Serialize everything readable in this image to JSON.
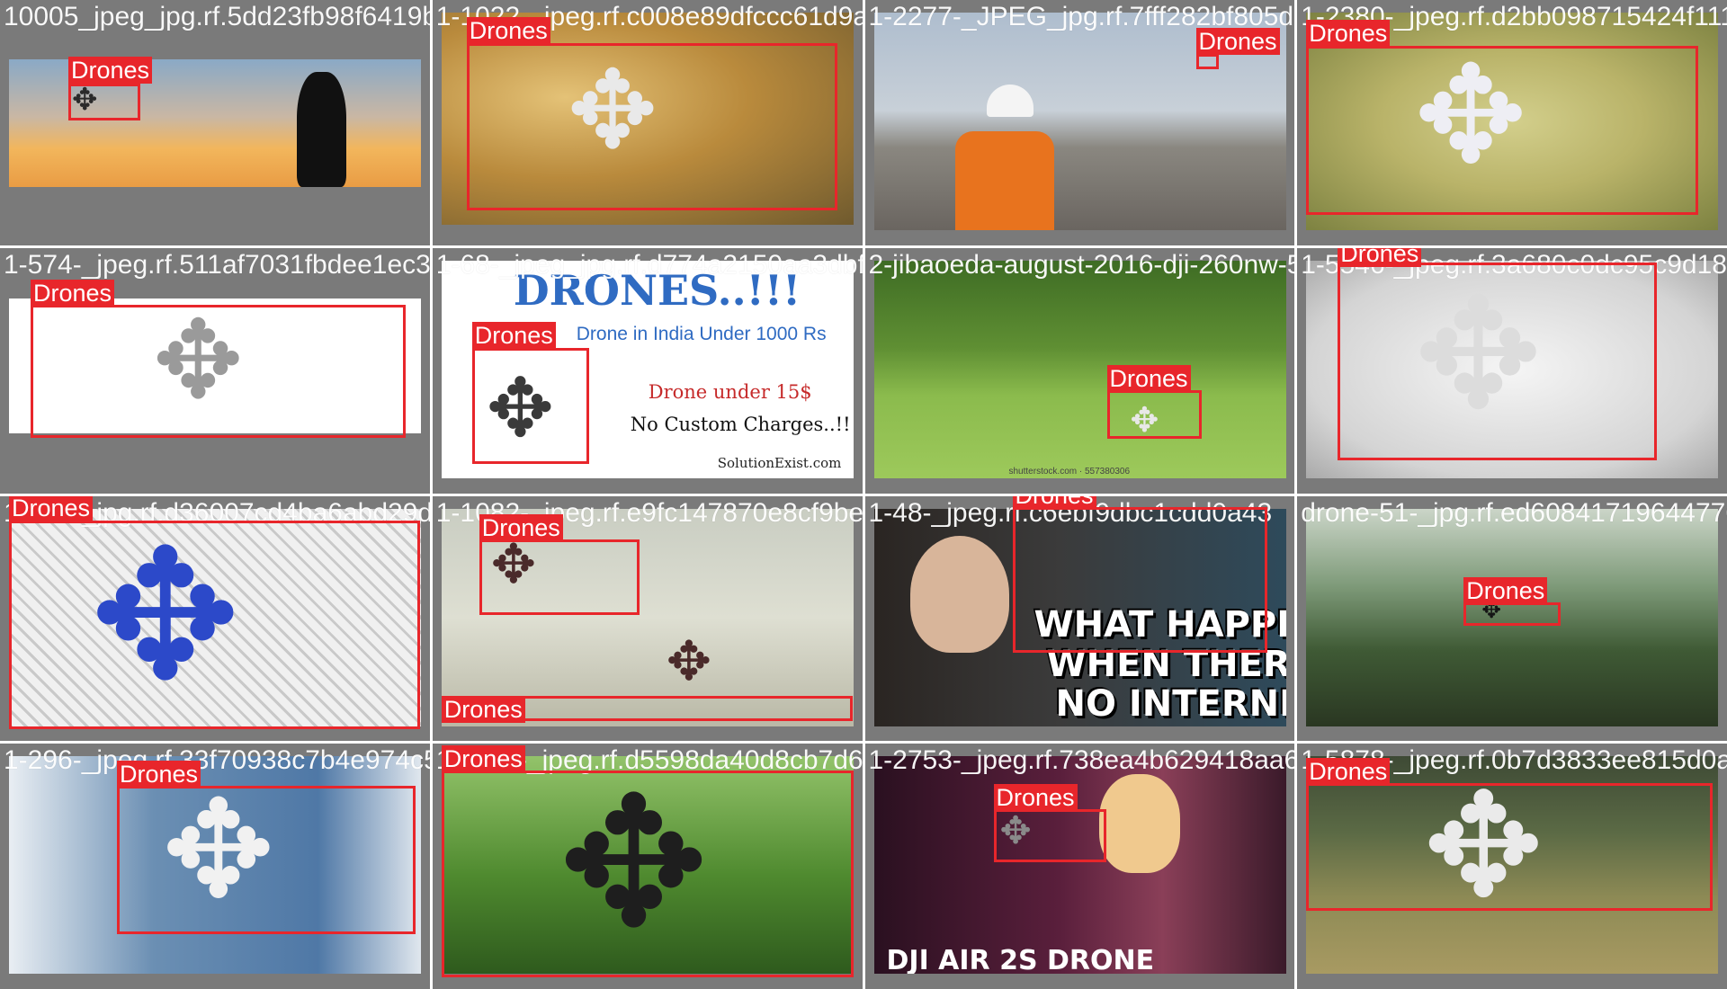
{
  "mosaic": {
    "box_color": "#e8262b",
    "label_text_color": "#ffffff",
    "cells": [
      {
        "filename": "10005_jpeg_jpg.rf.5dd23fb98f6419ba21f3",
        "scene": "sunset-silhouette",
        "detections": [
          {
            "label": "Drones"
          }
        ]
      },
      {
        "filename": "1-1022-_jpeg.rf.c008e89dfccc61d9ae97",
        "scene": "hand-held-mini-drone",
        "detections": [
          {
            "label": "Drones"
          }
        ]
      },
      {
        "filename": "1-2277-_JPEG_jpg.rf.7fff282bf805d7983",
        "scene": "construction-site-pilot",
        "detections": [
          {
            "label": "Drones"
          }
        ]
      },
      {
        "filename": "1-2380-_jpeg.rf.d2bb098715424f111e",
        "scene": "white-drone-olive-background",
        "detections": [
          {
            "label": "Drones"
          }
        ]
      },
      {
        "filename": "1-574-_jpeg.rf.511af7031fbdee1ec3b20910",
        "scene": "white-drone-on-white",
        "detections": [
          {
            "label": "Drones"
          }
        ]
      },
      {
        "filename": "1-68-_jpeg_jpg.rf.d774a2150aa3dbf0e49b200",
        "scene": "poster-ad",
        "poster": {
          "title": "DRONES..!!!",
          "subtitle": "Drone in India Under 1000 Rs",
          "price": "Drone under 15$",
          "charges": "No Custom Charges..!!",
          "site": "SolutionExist.com"
        },
        "detections": [
          {
            "label": "Drones"
          }
        ]
      },
      {
        "filename": "2-jibaoeda-august-2016-dji-260nw-557",
        "scene": "drone-over-cornfield",
        "credit": "shutterstock.com · 557380306",
        "detections": [
          {
            "label": "Drones"
          }
        ]
      },
      {
        "filename": "1-5546-_jpeg.rf.3a680c0dc95c9d18d9",
        "scene": "white-red-drone-grey-background",
        "detections": [
          {
            "label": "Drones"
          }
        ]
      },
      {
        "filename": "1-675-_jpg.rf.d36007cd4ba6abd29dd2378aa",
        "scene": "blue-racing-frame-on-fence",
        "detections": [
          {
            "label": "Drones"
          }
        ]
      },
      {
        "filename": "1-1082-_jpeg.rf.e9fc147870e8cf9be6874",
        "scene": "fpv-racers-cloudy-sky",
        "detections": [
          {
            "label": "Drones"
          },
          {
            "label": "Drones"
          }
        ]
      },
      {
        "filename": "1-48-_jpeg.rf.c6ebf9dbc1cdd0a43",
        "scene": "youtube-thumbnail-no-internet",
        "overlay_text": [
          "WHAT HAPPENS",
          "WHEN THERE'S",
          "NO INTERNET?"
        ],
        "detections": [
          {
            "label": "Drones"
          }
        ]
      },
      {
        "filename": "drone-51-_jpg.rf.ed608417196447766",
        "scene": "drone-over-mountain-valley",
        "detections": [
          {
            "label": "Drones"
          }
        ]
      },
      {
        "filename": "1-296-_jpeg.rf.33f70938c7b4e974c5",
        "scene": "white-drone-blue-wall",
        "detections": [
          {
            "label": "Drones"
          }
        ]
      },
      {
        "filename": "1-1103-_jpeg.rf.d5598da40d8cb7d656388040",
        "scene": "octocopter-on-grass",
        "detections": [
          {
            "label": "Drones"
          }
        ]
      },
      {
        "filename": "1-2753-_jpeg.rf.738ea4b629418aa6b",
        "scene": "presenter-holding-drone",
        "caption": "DJI AIR 2S DRONE",
        "detections": [
          {
            "label": "Drones"
          }
        ]
      },
      {
        "filename": "1-5878-_jpeg.rf.0b7d3833ee815d0a340fb",
        "scene": "phantom-over-meadow",
        "detections": [
          {
            "label": "Drones"
          }
        ]
      }
    ]
  }
}
